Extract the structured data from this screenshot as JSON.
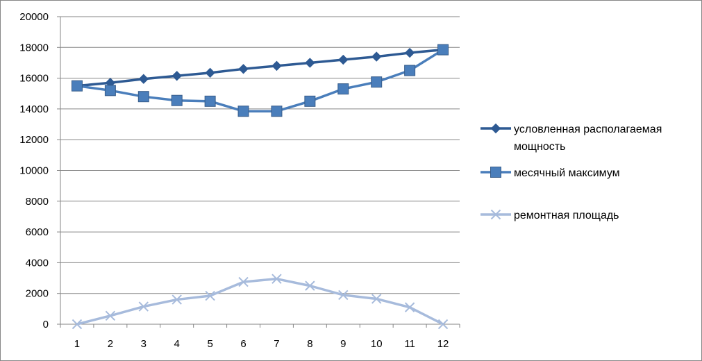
{
  "chart_data": {
    "type": "line",
    "title": "",
    "xlabel": "",
    "ylabel": "",
    "categories": [
      "1",
      "2",
      "3",
      "4",
      "5",
      "6",
      "7",
      "8",
      "9",
      "10",
      "11",
      "12"
    ],
    "ylim": [
      0,
      20000
    ],
    "yticks": [
      "0",
      "2000",
      "4000",
      "6000",
      "8000",
      "10000",
      "12000",
      "14000",
      "16000",
      "18000",
      "20000"
    ],
    "grid": true,
    "legend_position": "right",
    "series": [
      {
        "name": "условленная располагаемая мощность",
        "name_lines": [
          "условленная располагаемая",
          "мощность"
        ],
        "marker": "diamond",
        "color": "#2E5A93",
        "values": [
          15500,
          15700,
          15950,
          16150,
          16350,
          16600,
          16800,
          17000,
          17200,
          17400,
          17650,
          17850
        ]
      },
      {
        "name": "месячный максимум",
        "name_lines": [
          "месячный максимум"
        ],
        "marker": "square",
        "color": "#4A7EBB",
        "values": [
          15500,
          15200,
          14800,
          14550,
          14500,
          13850,
          13850,
          14500,
          15300,
          15750,
          16500,
          17850
        ]
      },
      {
        "name": "ремонтная площадь",
        "name_lines": [
          "ремонтная площадь"
        ],
        "marker": "x",
        "color": "#A7BBDC",
        "values": [
          0,
          550,
          1150,
          1600,
          1850,
          2750,
          2950,
          2500,
          1900,
          1650,
          1100,
          0
        ]
      }
    ]
  }
}
